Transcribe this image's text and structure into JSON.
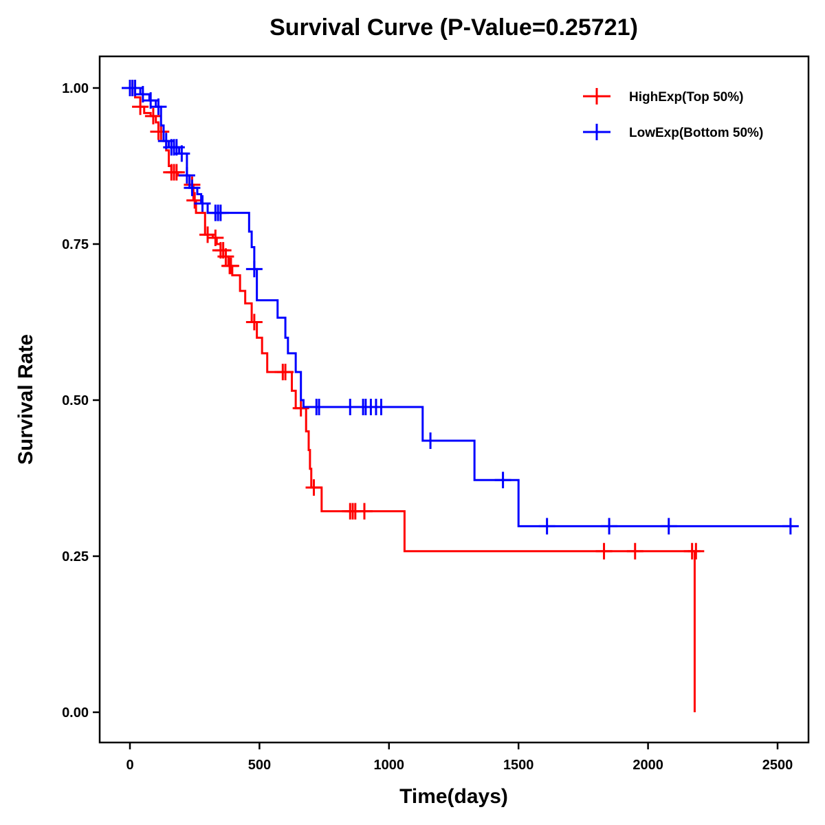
{
  "chart_data": {
    "type": "line",
    "subtype": "kaplan-meier-step",
    "title": "Survival Curve (P-Value=0.25721)",
    "xlabel": "Time(days)",
    "ylabel": "Survival Rate",
    "xlim": [
      -100,
      2600
    ],
    "ylim": [
      -0.04,
      1.05
    ],
    "x_ticks": [
      0,
      500,
      1000,
      1500,
      2000,
      2500
    ],
    "x_tick_labels": [
      "0",
      "500",
      "1000",
      "1500",
      "2000",
      "2500"
    ],
    "y_ticks": [
      0,
      0.25,
      0.5,
      0.75,
      1.0
    ],
    "y_tick_labels": [
      "0.00",
      "0.25",
      "0.50",
      "0.75",
      "1.00"
    ],
    "grid": false,
    "legend_position": "top-right",
    "series": [
      {
        "name": "HighExp(Top 50%)",
        "color": "#FF0000",
        "steps": [
          [
            0,
            1.0
          ],
          [
            20,
            0.985
          ],
          [
            40,
            0.97
          ],
          [
            55,
            0.96
          ],
          [
            80,
            0.955
          ],
          [
            100,
            0.945
          ],
          [
            110,
            0.93
          ],
          [
            130,
            0.915
          ],
          [
            140,
            0.9
          ],
          [
            150,
            0.875
          ],
          [
            160,
            0.865
          ],
          [
            185,
            0.86
          ],
          [
            230,
            0.845
          ],
          [
            245,
            0.82
          ],
          [
            255,
            0.8
          ],
          [
            290,
            0.765
          ],
          [
            320,
            0.76
          ],
          [
            335,
            0.75
          ],
          [
            350,
            0.74
          ],
          [
            370,
            0.73
          ],
          [
            380,
            0.715
          ],
          [
            395,
            0.7
          ],
          [
            425,
            0.675
          ],
          [
            445,
            0.655
          ],
          [
            470,
            0.625
          ],
          [
            490,
            0.6
          ],
          [
            510,
            0.575
          ],
          [
            530,
            0.545
          ],
          [
            625,
            0.515
          ],
          [
            640,
            0.487
          ],
          [
            680,
            0.45
          ],
          [
            690,
            0.42
          ],
          [
            695,
            0.39
          ],
          [
            700,
            0.36
          ],
          [
            740,
            0.322
          ],
          [
            1060,
            0.258
          ],
          [
            2180,
            0.0
          ]
        ],
        "end_time": 2180,
        "censor_times": [
          10,
          40,
          90,
          110,
          120,
          160,
          170,
          180,
          240,
          250,
          300,
          330,
          350,
          360,
          370,
          385,
          390,
          480,
          590,
          600,
          660,
          710,
          850,
          860,
          870,
          905,
          1830,
          1950,
          2170,
          2185
        ]
      },
      {
        "name": "LowExp(Bottom 50%)",
        "color": "#0000FF",
        "steps": [
          [
            0,
            1.0
          ],
          [
            40,
            0.99
          ],
          [
            75,
            0.98
          ],
          [
            100,
            0.97
          ],
          [
            120,
            0.94
          ],
          [
            130,
            0.915
          ],
          [
            150,
            0.905
          ],
          [
            190,
            0.895
          ],
          [
            220,
            0.86
          ],
          [
            230,
            0.84
          ],
          [
            260,
            0.83
          ],
          [
            275,
            0.815
          ],
          [
            300,
            0.8
          ],
          [
            460,
            0.77
          ],
          [
            470,
            0.745
          ],
          [
            480,
            0.71
          ],
          [
            490,
            0.66
          ],
          [
            570,
            0.632
          ],
          [
            600,
            0.6
          ],
          [
            610,
            0.575
          ],
          [
            640,
            0.545
          ],
          [
            660,
            0.5
          ],
          [
            670,
            0.489
          ],
          [
            1130,
            0.435
          ],
          [
            1330,
            0.372
          ],
          [
            1500,
            0.298
          ]
        ],
        "end_time": 2560,
        "censor_times": [
          0,
          10,
          20,
          50,
          80,
          110,
          140,
          160,
          170,
          180,
          200,
          220,
          240,
          280,
          330,
          340,
          350,
          480,
          720,
          730,
          850,
          900,
          910,
          930,
          950,
          970,
          1160,
          1440,
          1610,
          1850,
          2080,
          2550
        ]
      }
    ]
  }
}
